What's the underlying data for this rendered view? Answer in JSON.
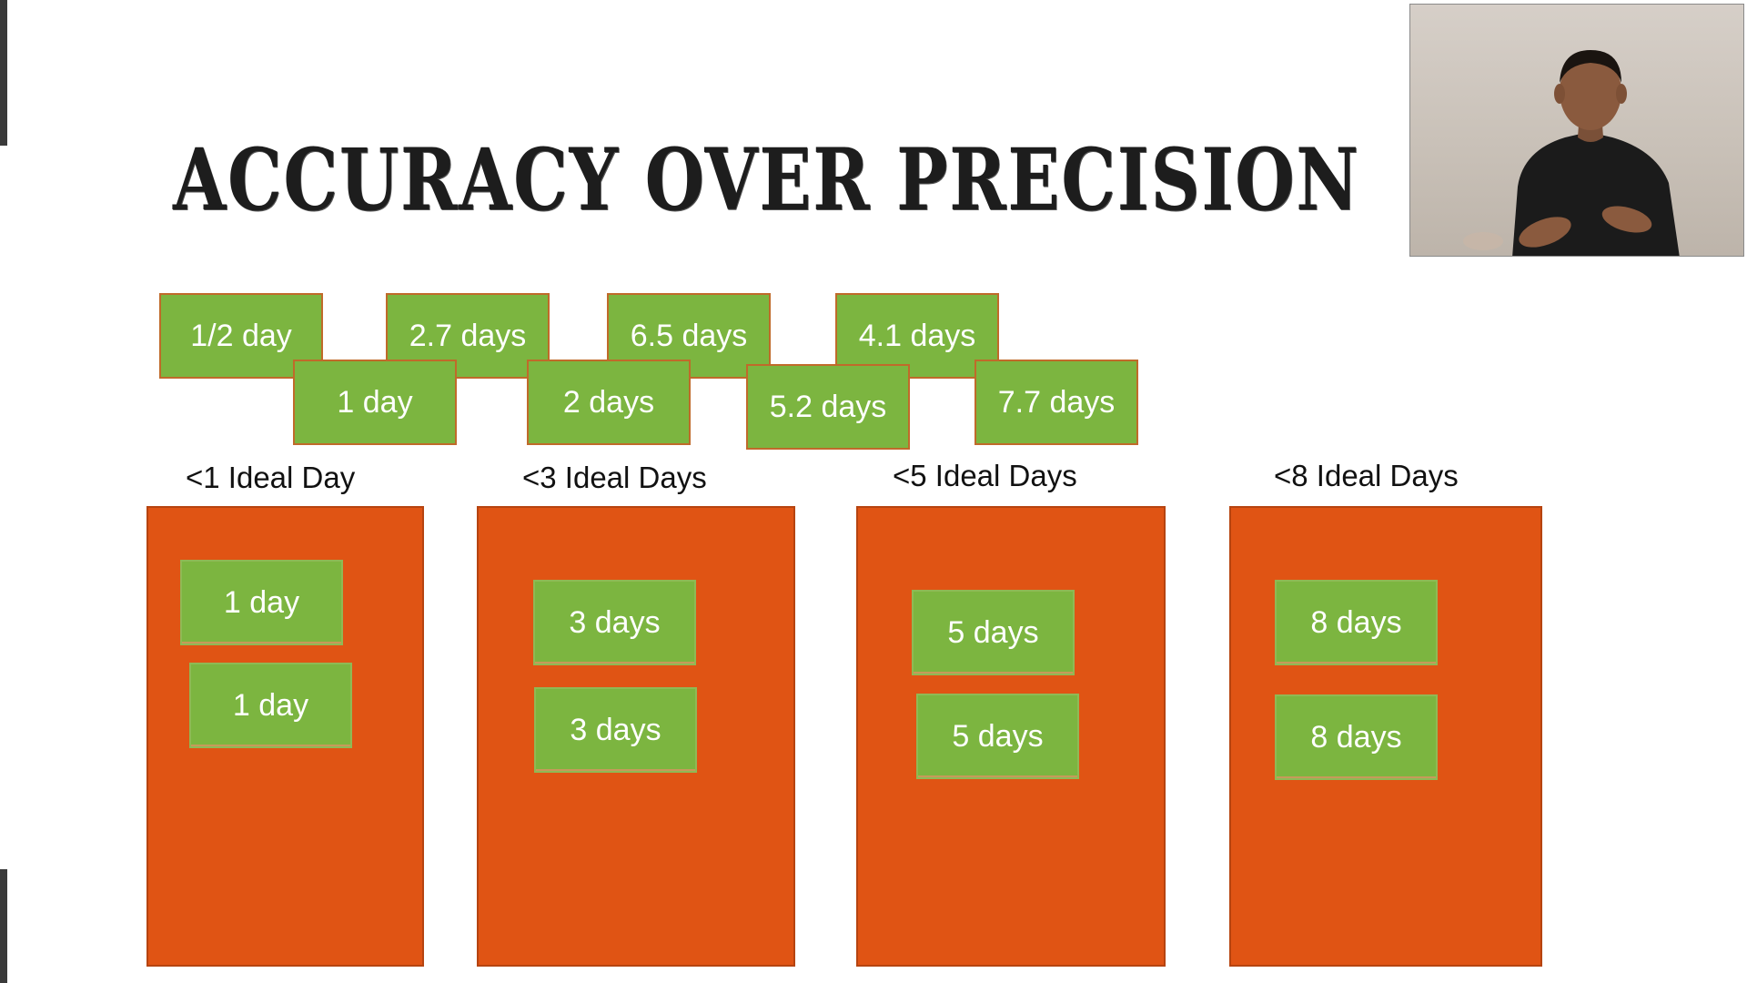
{
  "slide": {
    "title": "ACCURACY OVER PRECISION"
  },
  "estimates": {
    "row1": [
      "1/2 day",
      "2.7 days",
      "6.5 days",
      "4.1 days"
    ],
    "row2": [
      "1 day",
      "2 days",
      "5.2 days",
      "7.7 days"
    ]
  },
  "buckets": [
    {
      "label": "<1 Ideal Day",
      "items": [
        "1 day",
        "1 day"
      ]
    },
    {
      "label": "<3 Ideal Days",
      "items": [
        "3 days",
        "3 days"
      ]
    },
    {
      "label": "<5 Ideal Days",
      "items": [
        "5 days",
        "5 days"
      ]
    },
    {
      "label": "<8 Ideal Days",
      "items": [
        "8 days",
        "8 days"
      ]
    }
  ],
  "webcam": {
    "subject": "presenter"
  },
  "colors": {
    "bucket_fill": "#e05414",
    "estimate_fill": "#7cb540",
    "estimate_text": "#ffffff",
    "title_text": "#1d1d1d"
  }
}
